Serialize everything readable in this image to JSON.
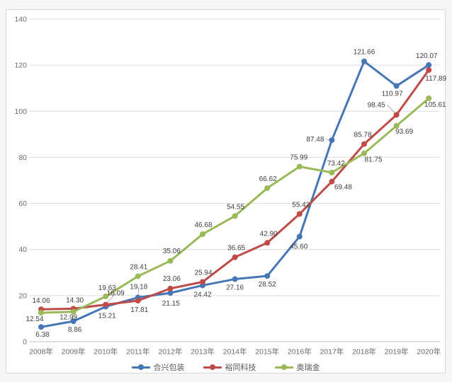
{
  "window": {
    "outer_background": "#f5f5f4",
    "panel_background": "#ffffff",
    "panel_border": "#d8d8d8"
  },
  "colors": {
    "gridline": "#dcdcdc",
    "axis_line": "#bfbfbf",
    "tick_text": "#6a6a6a",
    "data_label_text": "#404040",
    "legend_text": "#595959",
    "leader_line": "#a0a0a0"
  },
  "chart_data": {
    "type": "line",
    "title": "",
    "xlabel": "",
    "ylabel": "",
    "categories": [
      "2008年",
      "2009年",
      "2010年",
      "2011年",
      "2012年",
      "2013年",
      "2014年",
      "2015年",
      "2016年",
      "2017年",
      "2018年",
      "2019年",
      "2020年"
    ],
    "series": [
      {
        "name": "合兴包装",
        "color": "#4576b5",
        "values": [
          6.38,
          8.86,
          15.21,
          19.18,
          21.15,
          24.42,
          27.16,
          28.52,
          45.6,
          87.48,
          121.66,
          110.97,
          120.07
        ]
      },
      {
        "name": "裕同科技",
        "color": "#bf4b48",
        "values": [
          14.06,
          14.3,
          16.09,
          17.81,
          23.06,
          25.94,
          36.65,
          42.9,
          55.42,
          69.48,
          85.78,
          98.45,
          117.89
        ]
      },
      {
        "name": "奥瑞金",
        "color": "#9aba59",
        "values": [
          12.54,
          12.99,
          19.63,
          28.41,
          35.06,
          46.68,
          54.55,
          66.62,
          75.99,
          73.42,
          81.75,
          93.69,
          105.61
        ]
      }
    ],
    "ylim": [
      0,
      140
    ],
    "ytick_step": 20,
    "grid": true,
    "markers": "circle",
    "line_width": 3,
    "legend_position": "bottom",
    "label_decimals": 2,
    "label_layout": [
      [
        [
          2,
          14
        ],
        [
          2,
          15
        ],
        [
          2,
          16
        ],
        [
          1,
          -12,
          "m",
          1
        ],
        [
          1,
          18
        ],
        [
          0,
          16
        ],
        [
          0,
          15
        ],
        [
          0,
          15
        ],
        [
          -1,
          17
        ],
        [
          -11,
          2,
          "e",
          1
        ],
        [
          0,
          -10
        ],
        [
          -6,
          14
        ],
        [
          -3,
          -10
        ]
      ],
      [
        [
          0,
          -9
        ],
        [
          2,
          -9
        ],
        [
          14,
          -13,
          "m",
          1
        ],
        [
          2,
          16
        ],
        [
          2,
          -11
        ],
        [
          1,
          -10
        ],
        [
          2,
          -10
        ],
        [
          2,
          -10
        ],
        [
          2,
          -10
        ],
        [
          16,
          11
        ],
        [
          -2,
          -10
        ],
        [
          -16,
          -11,
          "e",
          1
        ],
        [
          10,
          15
        ]
      ],
      [
        [
          -9,
          12
        ],
        [
          -7,
          11
        ],
        [
          2,
          -9
        ],
        [
          1,
          -10
        ],
        [
          2,
          -11
        ],
        [
          1,
          -10
        ],
        [
          1,
          -10
        ],
        [
          1,
          -10
        ],
        [
          -1,
          -10
        ],
        [
          6,
          -10
        ],
        [
          13,
          12
        ],
        [
          11,
          11
        ],
        [
          9,
          12
        ]
      ]
    ]
  }
}
